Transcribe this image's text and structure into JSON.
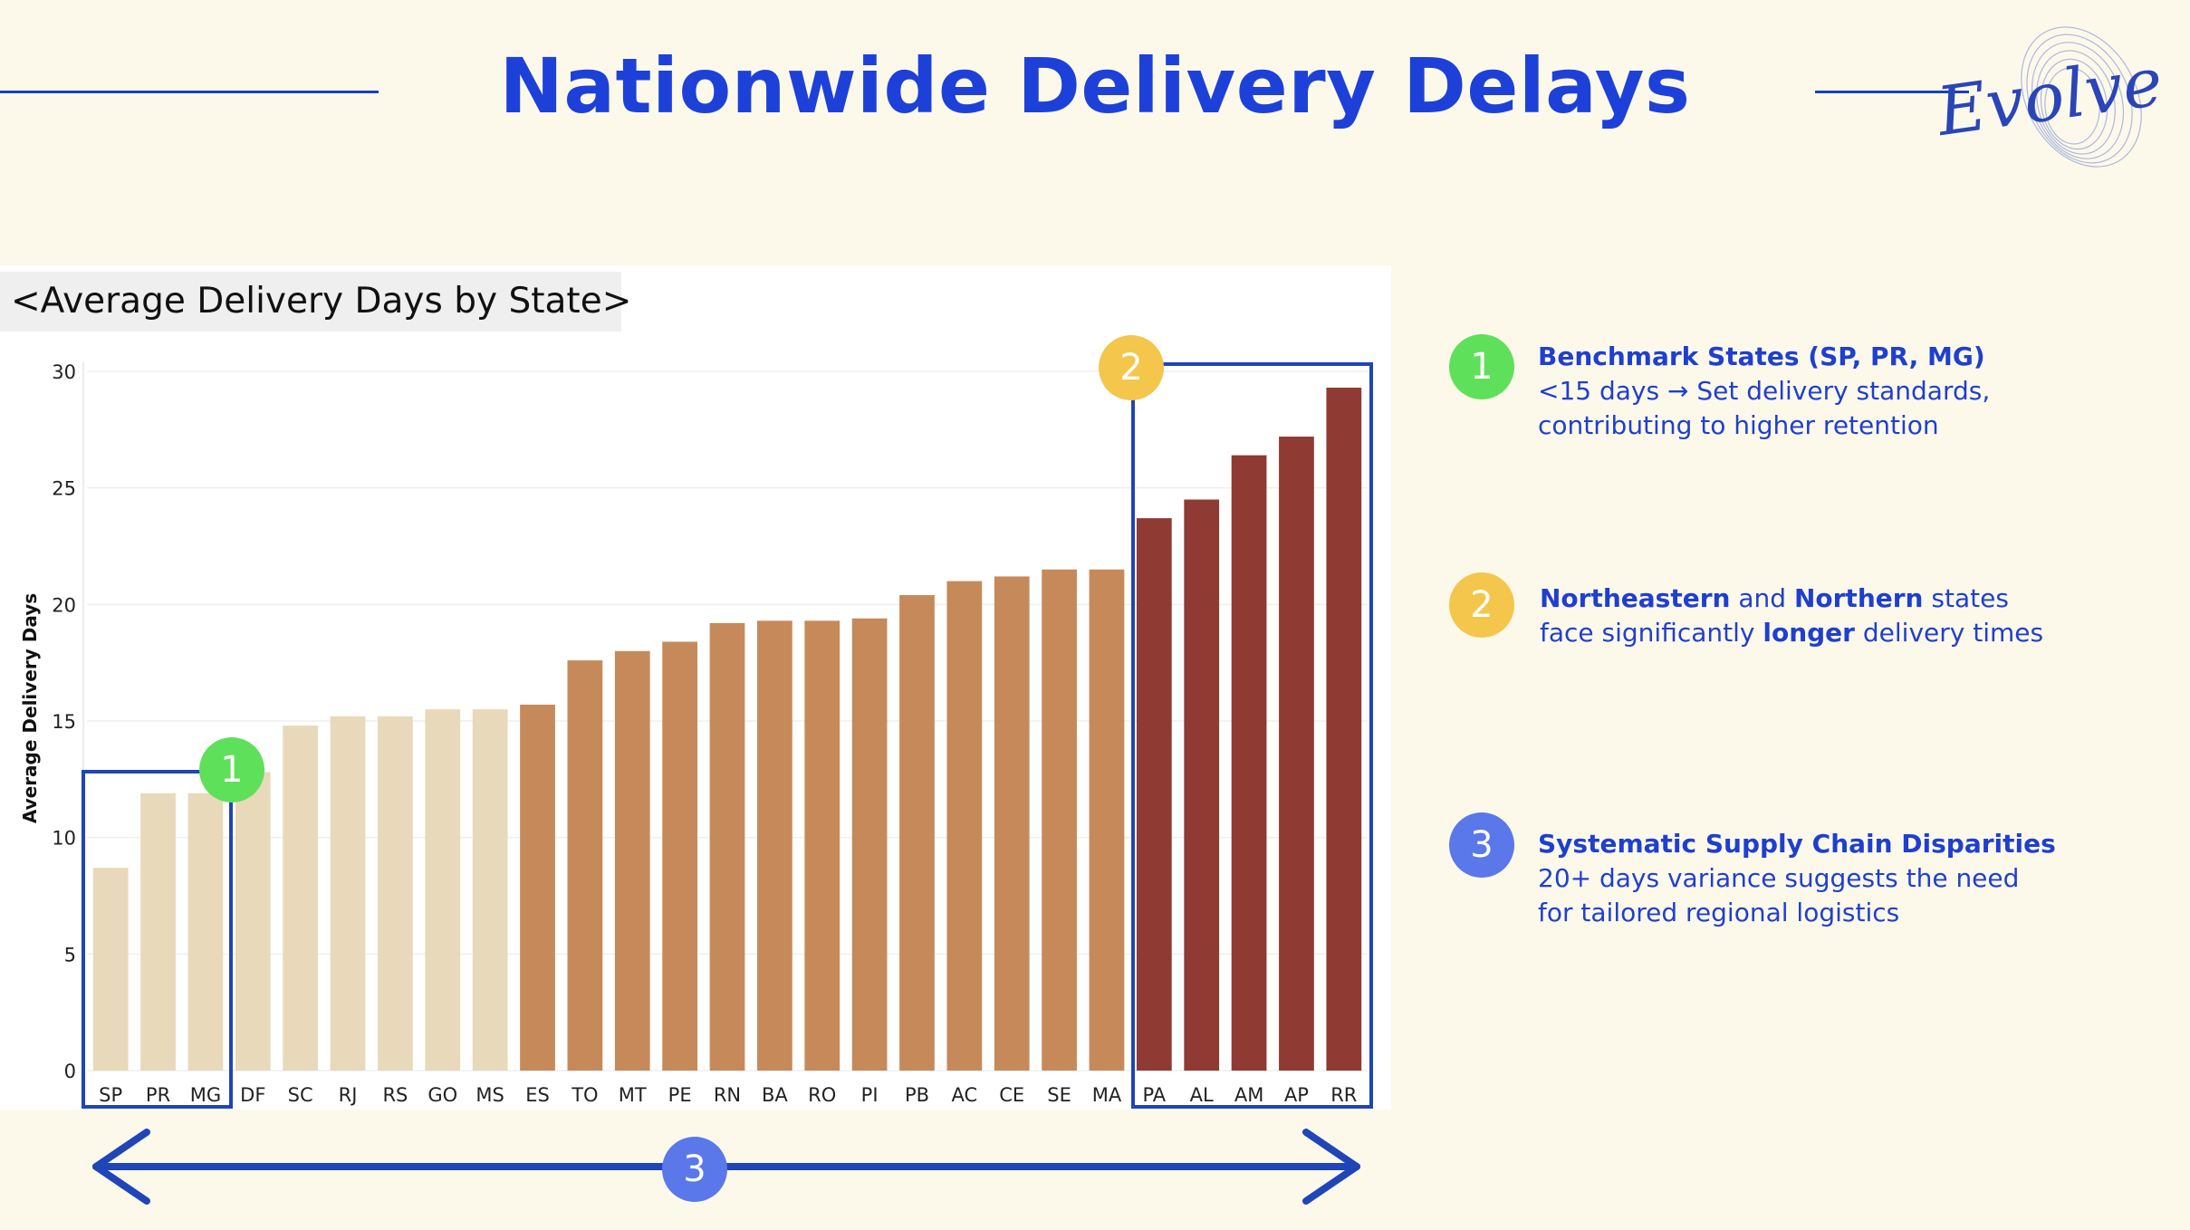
{
  "title": "Nationwide Delivery Delays",
  "logo_text": "Evolve",
  "chart_box_title": "<Average Delivery Days by State>",
  "colors": {
    "title": "#1d41d8",
    "accent": "#1f45b8",
    "text_blue": "#1f3fd0",
    "low": "#e8d9bb",
    "mid": "#c68a5a",
    "high": "#8f3a33",
    "marker1": "#5fe05a",
    "marker2": "#f4c64b",
    "marker3": "#5a78ea"
  },
  "markers": {
    "m1": "1",
    "m2": "2",
    "m3": "3"
  },
  "takeaways": [
    {
      "num": "1",
      "heading": "Benchmark States (SP, PR, MG)",
      "line2": "<15 days → Set delivery standards,",
      "line3": "contributing to higher retention"
    },
    {
      "num": "2",
      "line1_b1": "Northeastern",
      "line1_t1": " and ",
      "line1_b2": "Northern",
      "line1_t2": " states",
      "line2_t1": "face significantly ",
      "line2_b1": "longer",
      "line2_t2": " delivery times"
    },
    {
      "num": "3",
      "heading": "Systematic Supply Chain Disparities",
      "line2": "20+ days variance suggests the need",
      "line3": "for tailored regional logistics"
    }
  ],
  "chart_data": {
    "type": "bar",
    "title": "<Average Delivery Days by State>",
    "xlabel": "",
    "ylabel": "Average Delivery Days",
    "ylim": [
      0,
      30
    ],
    "yticks": [
      0,
      5,
      10,
      15,
      20,
      25,
      30
    ],
    "grid": true,
    "categories": [
      "SP",
      "PR",
      "MG",
      "DF",
      "SC",
      "RJ",
      "RS",
      "GO",
      "MS",
      "ES",
      "TO",
      "MT",
      "PE",
      "RN",
      "BA",
      "RO",
      "PI",
      "PB",
      "AC",
      "CE",
      "SE",
      "MA",
      "PA",
      "AL",
      "AM",
      "AP",
      "RR"
    ],
    "values": [
      8.7,
      11.9,
      11.9,
      12.8,
      14.8,
      15.2,
      15.2,
      15.5,
      15.5,
      15.7,
      17.6,
      18.0,
      18.4,
      19.2,
      19.3,
      19.3,
      19.4,
      20.4,
      21.0,
      21.2,
      21.5,
      21.5,
      23.7,
      24.5,
      26.4,
      27.2,
      29.3
    ],
    "tiers": [
      "low",
      "low",
      "low",
      "low",
      "low",
      "low",
      "low",
      "low",
      "low",
      "mid",
      "mid",
      "mid",
      "mid",
      "mid",
      "mid",
      "mid",
      "mid",
      "mid",
      "mid",
      "mid",
      "mid",
      "mid",
      "high",
      "high",
      "high",
      "high",
      "high"
    ]
  }
}
